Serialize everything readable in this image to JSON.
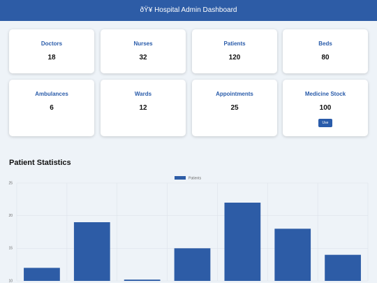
{
  "header": {
    "title": "ðŸ¥ Hospital Admin Dashboard"
  },
  "cards": [
    {
      "label": "Doctors",
      "value": 18
    },
    {
      "label": "Nurses",
      "value": 32
    },
    {
      "label": "Patients",
      "value": 120
    },
    {
      "label": "Beds",
      "value": 80
    },
    {
      "label": "Ambulances",
      "value": 6
    },
    {
      "label": "Wards",
      "value": 12
    },
    {
      "label": "Appointments",
      "value": 25
    },
    {
      "label": "Medicine Stock",
      "value": 100,
      "action": "Use"
    }
  ],
  "chart_data": {
    "type": "bar",
    "title": "Patient Statistics",
    "categories": [
      null,
      null,
      null,
      null,
      null,
      null,
      null
    ],
    "series": [
      {
        "name": "Patients",
        "color": "#2d5ca6",
        "values": [
          12,
          19,
          10.2,
          15,
          22,
          18,
          14
        ]
      }
    ],
    "ylim": [
      10,
      25
    ],
    "yticks": [
      10,
      15,
      20,
      25
    ],
    "grid": true
  }
}
